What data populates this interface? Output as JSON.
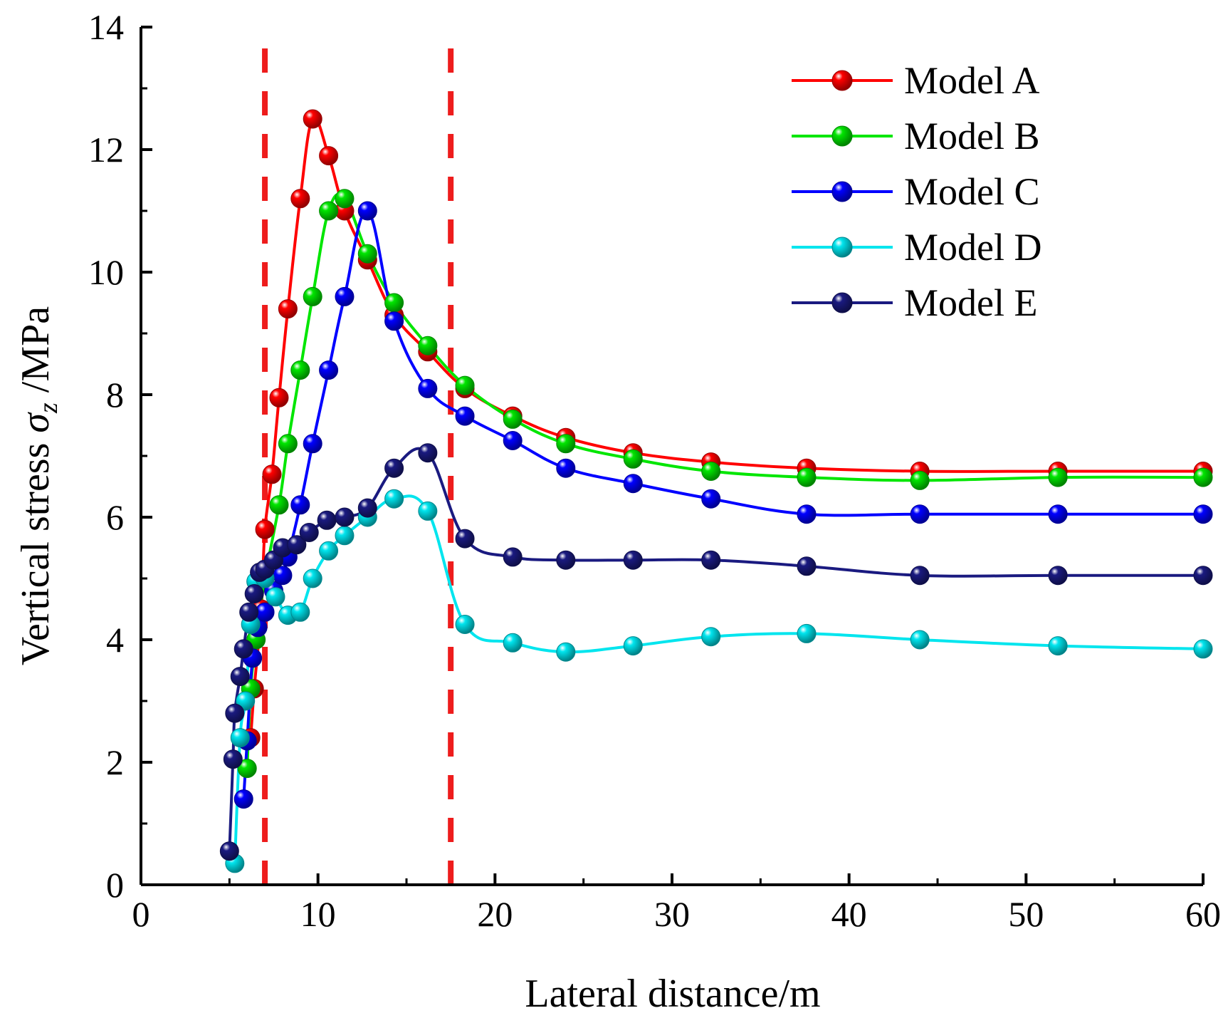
{
  "chart_data": {
    "type": "line",
    "title": "",
    "xlabel": "Lateral distance/m",
    "ylabel": {
      "prefix": "Vertical stress ",
      "symbol": "σ",
      "subscript": "z",
      "suffix": " /MPa"
    },
    "xlim": [
      0,
      60
    ],
    "ylim": [
      0,
      14
    ],
    "xticks": [
      "0",
      "10",
      "20",
      "30",
      "40",
      "50",
      "60"
    ],
    "yticks": [
      "0",
      "2",
      "4",
      "6",
      "8",
      "10",
      "12",
      "14"
    ],
    "grid": false,
    "legend_position": "top-right",
    "reference_lines_x": [
      7.0,
      17.5
    ],
    "reference_line_color": "#ee1c1c",
    "series": [
      {
        "name": "Model A",
        "color": "#ff0000",
        "x": [
          6.2,
          6.4,
          6.8,
          7.0,
          7.4,
          7.8,
          8.3,
          9.0,
          9.7,
          10.6,
          11.5,
          12.8,
          14.3,
          16.2,
          18.3,
          21.0,
          24.0,
          27.8,
          32.2,
          37.6,
          44.0,
          51.8,
          60.0
        ],
        "y": [
          2.4,
          3.2,
          4.5,
          5.8,
          6.7,
          7.95,
          9.4,
          11.2,
          12.5,
          11.9,
          11.0,
          10.2,
          9.3,
          8.7,
          8.1,
          7.65,
          7.3,
          7.05,
          6.9,
          6.8,
          6.75,
          6.75,
          6.75
        ]
      },
      {
        "name": "Model B",
        "color": "#00e600",
        "x": [
          6.0,
          6.2,
          6.5,
          7.0,
          7.8,
          8.3,
          9.0,
          9.7,
          10.6,
          11.5,
          12.8,
          14.3,
          16.2,
          18.3,
          21.0,
          24.0,
          27.8,
          32.2,
          37.6,
          44.0,
          51.8,
          60.0
        ],
        "y": [
          1.9,
          3.2,
          4.0,
          5.0,
          6.2,
          7.2,
          8.4,
          9.6,
          11.0,
          11.2,
          10.3,
          9.5,
          8.8,
          8.15,
          7.6,
          7.2,
          6.95,
          6.75,
          6.65,
          6.6,
          6.65,
          6.65
        ]
      },
      {
        "name": "Model C",
        "color": "#0000ff",
        "x": [
          5.8,
          6.0,
          6.3,
          6.6,
          7.0,
          7.5,
          8.0,
          8.3,
          9.0,
          9.7,
          10.6,
          11.5,
          12.8,
          14.3,
          16.2,
          18.3,
          21.0,
          24.0,
          27.8,
          32.2,
          37.6,
          44.0,
          51.8,
          60.0
        ],
        "y": [
          1.4,
          2.35,
          3.7,
          4.2,
          4.45,
          4.8,
          5.05,
          5.35,
          6.2,
          7.2,
          8.4,
          9.6,
          11.0,
          9.2,
          8.1,
          7.65,
          7.25,
          6.8,
          6.55,
          6.3,
          6.05,
          6.05,
          6.05,
          6.05
        ]
      },
      {
        "name": "Model D",
        "color": "#00e5ee",
        "x": [
          5.3,
          5.6,
          5.9,
          6.2,
          6.5,
          7.0,
          7.6,
          8.3,
          9.0,
          9.7,
          10.6,
          11.5,
          12.8,
          14.3,
          16.2,
          18.3,
          21.0,
          24.0,
          27.8,
          32.2,
          37.6,
          44.0,
          51.8,
          60.0
        ],
        "y": [
          0.35,
          2.4,
          3.0,
          4.25,
          4.95,
          5.0,
          4.7,
          4.4,
          4.45,
          5.0,
          5.45,
          5.7,
          6.0,
          6.3,
          6.1,
          4.25,
          3.95,
          3.8,
          3.9,
          4.05,
          4.1,
          4.0,
          3.9,
          3.85
        ]
      },
      {
        "name": "Model E",
        "color": "#1a1a80",
        "x": [
          5.0,
          5.2,
          5.3,
          5.6,
          5.8,
          6.1,
          6.4,
          6.7,
          7.0,
          7.5,
          8.0,
          8.8,
          9.5,
          10.5,
          11.5,
          12.8,
          14.3,
          16.2,
          18.3,
          21.0,
          24.0,
          27.8,
          32.2,
          37.6,
          44.0,
          51.8,
          60.0
        ],
        "y": [
          0.55,
          2.05,
          2.8,
          3.4,
          3.85,
          4.45,
          4.75,
          5.1,
          5.15,
          5.3,
          5.5,
          5.55,
          5.75,
          5.95,
          6.0,
          6.15,
          6.8,
          7.05,
          5.65,
          5.35,
          5.3,
          5.3,
          5.3,
          5.2,
          5.05,
          5.05,
          5.05
        ]
      }
    ]
  }
}
